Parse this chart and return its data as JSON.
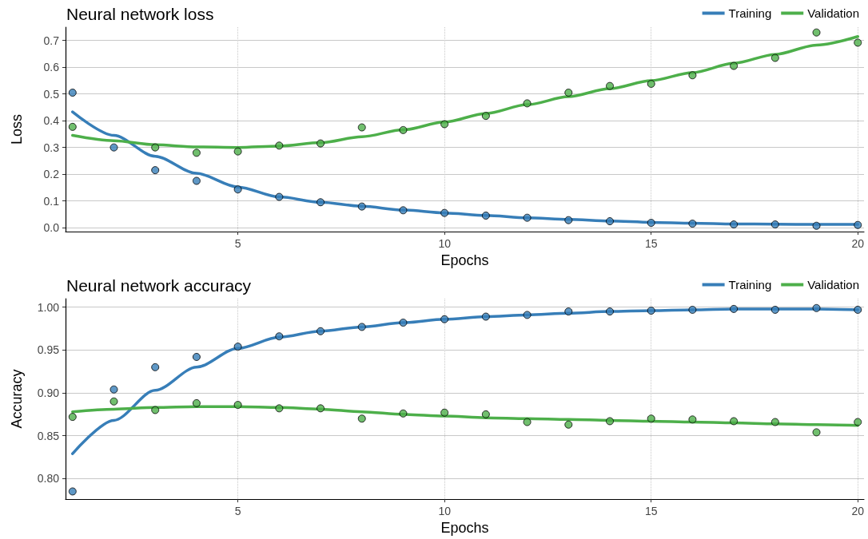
{
  "chart_data": [
    {
      "type": "scatter",
      "title": "Neural network loss",
      "xlabel": "Epochs",
      "ylabel": "Loss",
      "xlim": [
        0.83,
        20.15
      ],
      "xticks": [
        5,
        10,
        15,
        20
      ],
      "ylim": [
        -0.015,
        0.75
      ],
      "yticks": [
        {
          "value": 0,
          "label": "0.0"
        },
        {
          "value": 0.1,
          "label": "0.1"
        },
        {
          "value": 0.2,
          "label": "0.2"
        },
        {
          "value": 0.3,
          "label": "0.3"
        },
        {
          "value": 0.4,
          "label": "0.4"
        },
        {
          "value": 0.5,
          "label": "0.5"
        },
        {
          "value": 0.6,
          "label": "0.6"
        },
        {
          "value": 0.7,
          "label": "0.7"
        }
      ],
      "grid": true,
      "legend": "top right",
      "series": [
        {
          "type": "line",
          "name": "Training",
          "color": "#377eb8",
          "marker": "none",
          "x": [
            1,
            2,
            3,
            4,
            5,
            6,
            7,
            8,
            9,
            10,
            11,
            12,
            13,
            14,
            15,
            16,
            17,
            18,
            19,
            20
          ],
          "values": [
            0.433,
            0.345,
            0.267,
            0.203,
            0.152,
            0.115,
            0.095,
            0.08,
            0.066,
            0.055,
            0.046,
            0.037,
            0.031,
            0.025,
            0.02,
            0.017,
            0.014,
            0.013,
            0.012,
            0.012
          ]
        },
        {
          "type": "line",
          "name": "Validation",
          "color": "#4daf4a",
          "marker": "none",
          "x": [
            1,
            2,
            3,
            4,
            5,
            6,
            7,
            8,
            9,
            10,
            11,
            12,
            13,
            14,
            15,
            16,
            17,
            18,
            19,
            20
          ],
          "values": [
            0.345,
            0.325,
            0.31,
            0.302,
            0.3,
            0.305,
            0.318,
            0.34,
            0.366,
            0.395,
            0.427,
            0.46,
            0.49,
            0.52,
            0.55,
            0.58,
            0.615,
            0.648,
            0.683,
            0.715
          ]
        },
        {
          "color": "#377eb8",
          "marker": "circle",
          "x": [
            1,
            2,
            3,
            4,
            5,
            6,
            7,
            8,
            9,
            10,
            11,
            12,
            13,
            14,
            15,
            16,
            17,
            18,
            19,
            20
          ],
          "values": [
            0.505,
            0.3,
            0.215,
            0.175,
            0.143,
            0.115,
            0.095,
            0.079,
            0.065,
            0.055,
            0.045,
            0.037,
            0.028,
            0.024,
            0.018,
            0.015,
            0.012,
            0.012,
            0.007,
            0.01
          ]
        },
        {
          "color": "#4daf4a",
          "marker": "circle",
          "x": [
            1,
            2,
            3,
            4,
            5,
            6,
            7,
            8,
            9,
            10,
            11,
            12,
            13,
            14,
            15,
            16,
            17,
            18,
            19,
            20
          ],
          "values": [
            0.377,
            null,
            0.3,
            0.28,
            0.285,
            0.307,
            0.315,
            0.375,
            0.365,
            0.387,
            0.418,
            0.465,
            0.505,
            0.53,
            0.538,
            0.57,
            0.605,
            0.635,
            0.73,
            0.692
          ]
        }
      ]
    },
    {
      "type": "scatter",
      "title": "Neural network accuracy",
      "xlabel": "Epochs",
      "ylabel": "Accuracy",
      "xlim": [
        0.83,
        20.15
      ],
      "xticks": [
        5,
        10,
        15,
        20
      ],
      "ylim": [
        0.776,
        1.01
      ],
      "yticks": [
        {
          "value": 0.8,
          "label": "0.80"
        },
        {
          "value": 0.85,
          "label": "0.85"
        },
        {
          "value": 0.9,
          "label": "0.90"
        },
        {
          "value": 0.95,
          "label": "0.95"
        },
        {
          "value": 1,
          "label": "1.00"
        }
      ],
      "grid": true,
      "legend": "top right",
      "series": [
        {
          "type": "line",
          "name": "Training",
          "color": "#377eb8",
          "marker": "none",
          "x": [
            1,
            2,
            3,
            4,
            5,
            6,
            7,
            8,
            9,
            10,
            11,
            12,
            13,
            14,
            15,
            16,
            17,
            18,
            19,
            20
          ],
          "values": [
            0.829,
            0.868,
            0.903,
            0.93,
            0.952,
            0.965,
            0.972,
            0.977,
            0.982,
            0.986,
            0.989,
            0.991,
            0.993,
            0.995,
            0.996,
            0.997,
            0.998,
            0.998,
            0.998,
            0.997
          ]
        },
        {
          "type": "line",
          "name": "Validation",
          "color": "#4daf4a",
          "marker": "none",
          "x": [
            1,
            2,
            3,
            4,
            5,
            6,
            7,
            8,
            9,
            10,
            11,
            12,
            13,
            14,
            15,
            16,
            17,
            18,
            19,
            20
          ],
          "values": [
            0.878,
            0.881,
            0.883,
            0.884,
            0.884,
            0.883,
            0.881,
            0.878,
            0.875,
            0.873,
            0.871,
            0.87,
            0.869,
            0.868,
            0.867,
            0.866,
            0.865,
            0.864,
            0.863,
            0.862
          ]
        },
        {
          "color": "#377eb8",
          "marker": "circle",
          "x": [
            1,
            2,
            3,
            4,
            5,
            6,
            7,
            8,
            9,
            10,
            11,
            12,
            13,
            14,
            15,
            16,
            17,
            18,
            19,
            20
          ],
          "values": [
            0.785,
            0.904,
            0.93,
            0.942,
            0.954,
            0.966,
            0.972,
            0.977,
            0.982,
            0.986,
            0.989,
            0.991,
            0.995,
            0.995,
            0.996,
            0.997,
            0.998,
            0.997,
            0.999,
            0.997
          ]
        },
        {
          "color": "#4daf4a",
          "marker": "circle",
          "x": [
            1,
            2,
            3,
            4,
            5,
            6,
            7,
            8,
            9,
            10,
            11,
            12,
            13,
            14,
            15,
            16,
            17,
            18,
            19,
            20
          ],
          "values": [
            0.872,
            0.89,
            0.88,
            0.888,
            0.886,
            0.882,
            0.882,
            0.87,
            0.876,
            0.877,
            0.875,
            0.866,
            0.863,
            0.867,
            0.87,
            0.869,
            0.867,
            0.866,
            0.854,
            0.866
          ]
        }
      ]
    }
  ]
}
